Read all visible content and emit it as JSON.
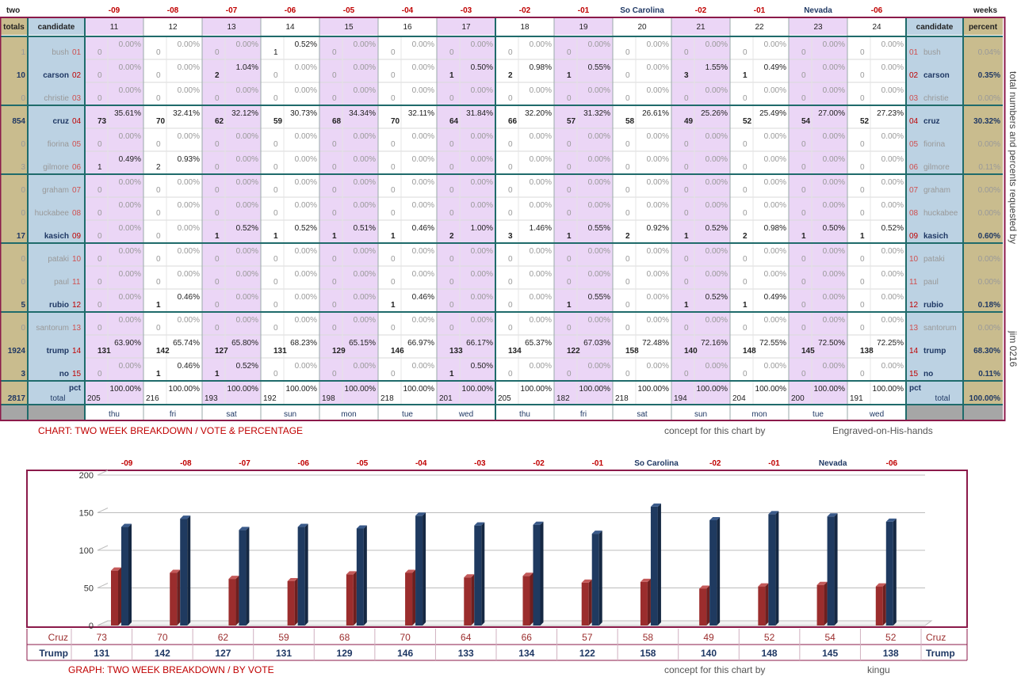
{
  "table": {
    "corner_label": "two",
    "corner_label_right": "weeks",
    "header_totals": "totals",
    "header_candidate": "candidate",
    "header_percent": "percent",
    "pct_label": "pct",
    "total_label": "total",
    "grand_total": "2817",
    "grand_pct": "100.00%",
    "side_note": "total numbers and percents requested by",
    "side_author": "jim 0216",
    "day_offsets": [
      "-09",
      "-08",
      "-07",
      "-06",
      "-05",
      "-04",
      "-03",
      "-02",
      "-01",
      "So Carolina",
      "-02",
      "-01",
      "Nevada",
      "-06"
    ],
    "day_numbers": [
      "11",
      "12",
      "13",
      "14",
      "15",
      "16",
      "17",
      "18",
      "19",
      "20",
      "21",
      "22",
      "23",
      "24"
    ],
    "weekdays": [
      "thu",
      "fri",
      "sat",
      "sun",
      "mon",
      "tue",
      "wed",
      "thu",
      "fri",
      "sat",
      "sun",
      "mon",
      "tue",
      "wed"
    ],
    "day_totals": [
      "205",
      "216",
      "193",
      "192",
      "198",
      "218",
      "201",
      "205",
      "182",
      "218",
      "194",
      "204",
      "200",
      "191"
    ],
    "day_total_pct": "100.00%",
    "candidates": [
      {
        "num": "01",
        "name": "bush",
        "total": "1",
        "pct": "0.04%",
        "active": false,
        "votes": [
          "0",
          "0",
          "0",
          "1",
          "0",
          "0",
          "0",
          "0",
          "0",
          "0",
          "0",
          "0",
          "0",
          "0"
        ],
        "pcts": [
          "0.00%",
          "0.00%",
          "0.00%",
          "0.52%",
          "0.00%",
          "0.00%",
          "0.00%",
          "0.00%",
          "0.00%",
          "0.00%",
          "0.00%",
          "0.00%",
          "0.00%",
          "0.00%"
        ]
      },
      {
        "num": "02",
        "name": "carson",
        "total": "10",
        "pct": "0.35%",
        "active": true,
        "votes": [
          "0",
          "0",
          "2",
          "0",
          "0",
          "0",
          "1",
          "2",
          "1",
          "0",
          "3",
          "1",
          "0",
          "0"
        ],
        "pcts": [
          "0.00%",
          "0.00%",
          "1.04%",
          "0.00%",
          "0.00%",
          "0.00%",
          "0.50%",
          "0.98%",
          "0.55%",
          "0.00%",
          "1.55%",
          "0.49%",
          "0.00%",
          "0.00%"
        ]
      },
      {
        "num": "03",
        "name": "christie",
        "total": "0",
        "pct": "0.00%",
        "active": false,
        "votes": [
          "0",
          "0",
          "0",
          "0",
          "0",
          "0",
          "0",
          "0",
          "0",
          "0",
          "0",
          "0",
          "0",
          "0"
        ],
        "pcts": [
          "0.00%",
          "0.00%",
          "0.00%",
          "0.00%",
          "0.00%",
          "0.00%",
          "0.00%",
          "0.00%",
          "0.00%",
          "0.00%",
          "0.00%",
          "0.00%",
          "0.00%",
          "0.00%"
        ]
      },
      {
        "num": "04",
        "name": "cruz",
        "total": "854",
        "pct": "30.32%",
        "active": true,
        "votes": [
          "73",
          "70",
          "62",
          "59",
          "68",
          "70",
          "64",
          "66",
          "57",
          "58",
          "49",
          "52",
          "54",
          "52"
        ],
        "pcts": [
          "35.61%",
          "32.41%",
          "32.12%",
          "30.73%",
          "34.34%",
          "32.11%",
          "31.84%",
          "32.20%",
          "31.32%",
          "26.61%",
          "25.26%",
          "25.49%",
          "27.00%",
          "27.23%"
        ]
      },
      {
        "num": "05",
        "name": "fiorina",
        "total": "0",
        "pct": "0.00%",
        "active": false,
        "votes": [
          "0",
          "0",
          "0",
          "0",
          "0",
          "0",
          "0",
          "0",
          "0",
          "0",
          "0",
          "0",
          "0",
          "0"
        ],
        "pcts": [
          "0.00%",
          "0.00%",
          "0.00%",
          "0.00%",
          "0.00%",
          "0.00%",
          "0.00%",
          "0.00%",
          "0.00%",
          "0.00%",
          "0.00%",
          "0.00%",
          "0.00%",
          "0.00%"
        ]
      },
      {
        "num": "06",
        "name": "gilmore",
        "total": "3",
        "pct": "0.11%",
        "active": false,
        "votes": [
          "1",
          "2",
          "0",
          "0",
          "0",
          "0",
          "0",
          "0",
          "0",
          "0",
          "0",
          "0",
          "0",
          "0"
        ],
        "pcts": [
          "0.49%",
          "0.93%",
          "0.00%",
          "0.00%",
          "0.00%",
          "0.00%",
          "0.00%",
          "0.00%",
          "0.00%",
          "0.00%",
          "0.00%",
          "0.00%",
          "0.00%",
          "0.00%"
        ]
      },
      {
        "num": "07",
        "name": "graham",
        "total": "0",
        "pct": "0.00%",
        "active": false,
        "votes": [
          "0",
          "0",
          "0",
          "0",
          "0",
          "0",
          "0",
          "0",
          "0",
          "0",
          "0",
          "0",
          "0",
          "0"
        ],
        "pcts": [
          "0.00%",
          "0.00%",
          "0.00%",
          "0.00%",
          "0.00%",
          "0.00%",
          "0.00%",
          "0.00%",
          "0.00%",
          "0.00%",
          "0.00%",
          "0.00%",
          "0.00%",
          "0.00%"
        ]
      },
      {
        "num": "08",
        "name": "huckabee",
        "total": "0",
        "pct": "0.00%",
        "active": false,
        "votes": [
          "0",
          "0",
          "0",
          "0",
          "0",
          "0",
          "0",
          "0",
          "0",
          "0",
          "0",
          "0",
          "0",
          "0"
        ],
        "pcts": [
          "0.00%",
          "0.00%",
          "0.00%",
          "0.00%",
          "0.00%",
          "0.00%",
          "0.00%",
          "0.00%",
          "0.00%",
          "0.00%",
          "0.00%",
          "0.00%",
          "0.00%",
          "0.00%"
        ]
      },
      {
        "num": "09",
        "name": "kasich",
        "total": "17",
        "pct": "0.60%",
        "active": true,
        "votes": [
          "0",
          "0",
          "1",
          "1",
          "1",
          "1",
          "2",
          "3",
          "1",
          "2",
          "1",
          "2",
          "1",
          "1"
        ],
        "pcts": [
          "0.00%",
          "0.00%",
          "0.52%",
          "0.52%",
          "0.51%",
          "0.46%",
          "1.00%",
          "1.46%",
          "0.55%",
          "0.92%",
          "0.52%",
          "0.98%",
          "0.50%",
          "0.52%"
        ]
      },
      {
        "num": "10",
        "name": "pataki",
        "total": "0",
        "pct": "0.00%",
        "active": false,
        "votes": [
          "0",
          "0",
          "0",
          "0",
          "0",
          "0",
          "0",
          "0",
          "0",
          "0",
          "0",
          "0",
          "0",
          "0"
        ],
        "pcts": [
          "0.00%",
          "0.00%",
          "0.00%",
          "0.00%",
          "0.00%",
          "0.00%",
          "0.00%",
          "0.00%",
          "0.00%",
          "0.00%",
          "0.00%",
          "0.00%",
          "0.00%",
          "0.00%"
        ]
      },
      {
        "num": "11",
        "name": "paul",
        "total": "0",
        "pct": "0.00%",
        "active": false,
        "votes": [
          "0",
          "0",
          "0",
          "0",
          "0",
          "0",
          "0",
          "0",
          "0",
          "0",
          "0",
          "0",
          "0",
          "0"
        ],
        "pcts": [
          "0.00%",
          "0.00%",
          "0.00%",
          "0.00%",
          "0.00%",
          "0.00%",
          "0.00%",
          "0.00%",
          "0.00%",
          "0.00%",
          "0.00%",
          "0.00%",
          "0.00%",
          "0.00%"
        ]
      },
      {
        "num": "12",
        "name": "rubio",
        "total": "5",
        "pct": "0.18%",
        "active": true,
        "votes": [
          "0",
          "1",
          "0",
          "0",
          "0",
          "1",
          "0",
          "0",
          "1",
          "0",
          "1",
          "1",
          "0",
          "0"
        ],
        "pcts": [
          "0.00%",
          "0.46%",
          "0.00%",
          "0.00%",
          "0.00%",
          "0.46%",
          "0.00%",
          "0.00%",
          "0.55%",
          "0.00%",
          "0.52%",
          "0.49%",
          "0.00%",
          "0.00%"
        ]
      },
      {
        "num": "13",
        "name": "santorum",
        "total": "0",
        "pct": "0.00%",
        "active": false,
        "votes": [
          "0",
          "0",
          "0",
          "0",
          "0",
          "0",
          "0",
          "0",
          "0",
          "0",
          "0",
          "0",
          "0",
          "0"
        ],
        "pcts": [
          "0.00%",
          "0.00%",
          "0.00%",
          "0.00%",
          "0.00%",
          "0.00%",
          "0.00%",
          "0.00%",
          "0.00%",
          "0.00%",
          "0.00%",
          "0.00%",
          "0.00%",
          "0.00%"
        ]
      },
      {
        "num": "14",
        "name": "trump",
        "total": "1924",
        "pct": "68.30%",
        "active": true,
        "votes": [
          "131",
          "142",
          "127",
          "131",
          "129",
          "146",
          "133",
          "134",
          "122",
          "158",
          "140",
          "148",
          "145",
          "138"
        ],
        "pcts": [
          "63.90%",
          "65.74%",
          "65.80%",
          "68.23%",
          "65.15%",
          "66.97%",
          "66.17%",
          "65.37%",
          "67.03%",
          "72.48%",
          "72.16%",
          "72.55%",
          "72.50%",
          "72.25%"
        ]
      },
      {
        "num": "15",
        "name": "no",
        "total": "3",
        "pct": "0.11%",
        "active": true,
        "votes": [
          "0",
          "1",
          "1",
          "0",
          "0",
          "0",
          "1",
          "0",
          "0",
          "0",
          "0",
          "0",
          "0",
          "0"
        ],
        "pcts": [
          "0.00%",
          "0.46%",
          "0.52%",
          "0.00%",
          "0.00%",
          "0.00%",
          "0.50%",
          "0.00%",
          "0.00%",
          "0.00%",
          "0.00%",
          "0.00%",
          "0.00%",
          "0.00%"
        ]
      }
    ],
    "caption_left": "CHART: TWO WEEK BREAKDOWN / VOTE & PERCENTAGE",
    "caption_concept": "concept for this chart by",
    "caption_author": "Engraved-on-His-hands"
  },
  "chart_data": {
    "type": "bar",
    "categories": [
      "-09",
      "-08",
      "-07",
      "-06",
      "-05",
      "-04",
      "-03",
      "-02",
      "-01",
      "So Carolina",
      "-02",
      "-01",
      "Nevada",
      "-06"
    ],
    "series": [
      {
        "name": "Cruz",
        "values": [
          73,
          70,
          62,
          59,
          68,
          70,
          64,
          66,
          57,
          58,
          49,
          52,
          54,
          52
        ],
        "color": "#9b2d2d"
      },
      {
        "name": "Trump",
        "values": [
          131,
          142,
          127,
          131,
          129,
          146,
          133,
          134,
          122,
          158,
          140,
          148,
          145,
          138
        ],
        "color": "#1f3a60"
      }
    ],
    "ylim": [
      0,
      200
    ],
    "yticks": [
      "0",
      "50",
      "100",
      "150",
      "200"
    ],
    "grid": true,
    "caption_left": "GRAPH: TWO WEEK BREAKDOWN / BY VOTE",
    "caption_concept": "concept for this chart by",
    "caption_author": "kingu"
  },
  "colors": {
    "frame": "#8b1a4a",
    "teal": "#1f6b6b",
    "tan": "#c9bc8e",
    "blue": "#bcd2e3",
    "lavender": "#ebd6f6",
    "red_text": "#c00000",
    "navy_text": "#1f3864",
    "grey": "#a6a6a6"
  }
}
